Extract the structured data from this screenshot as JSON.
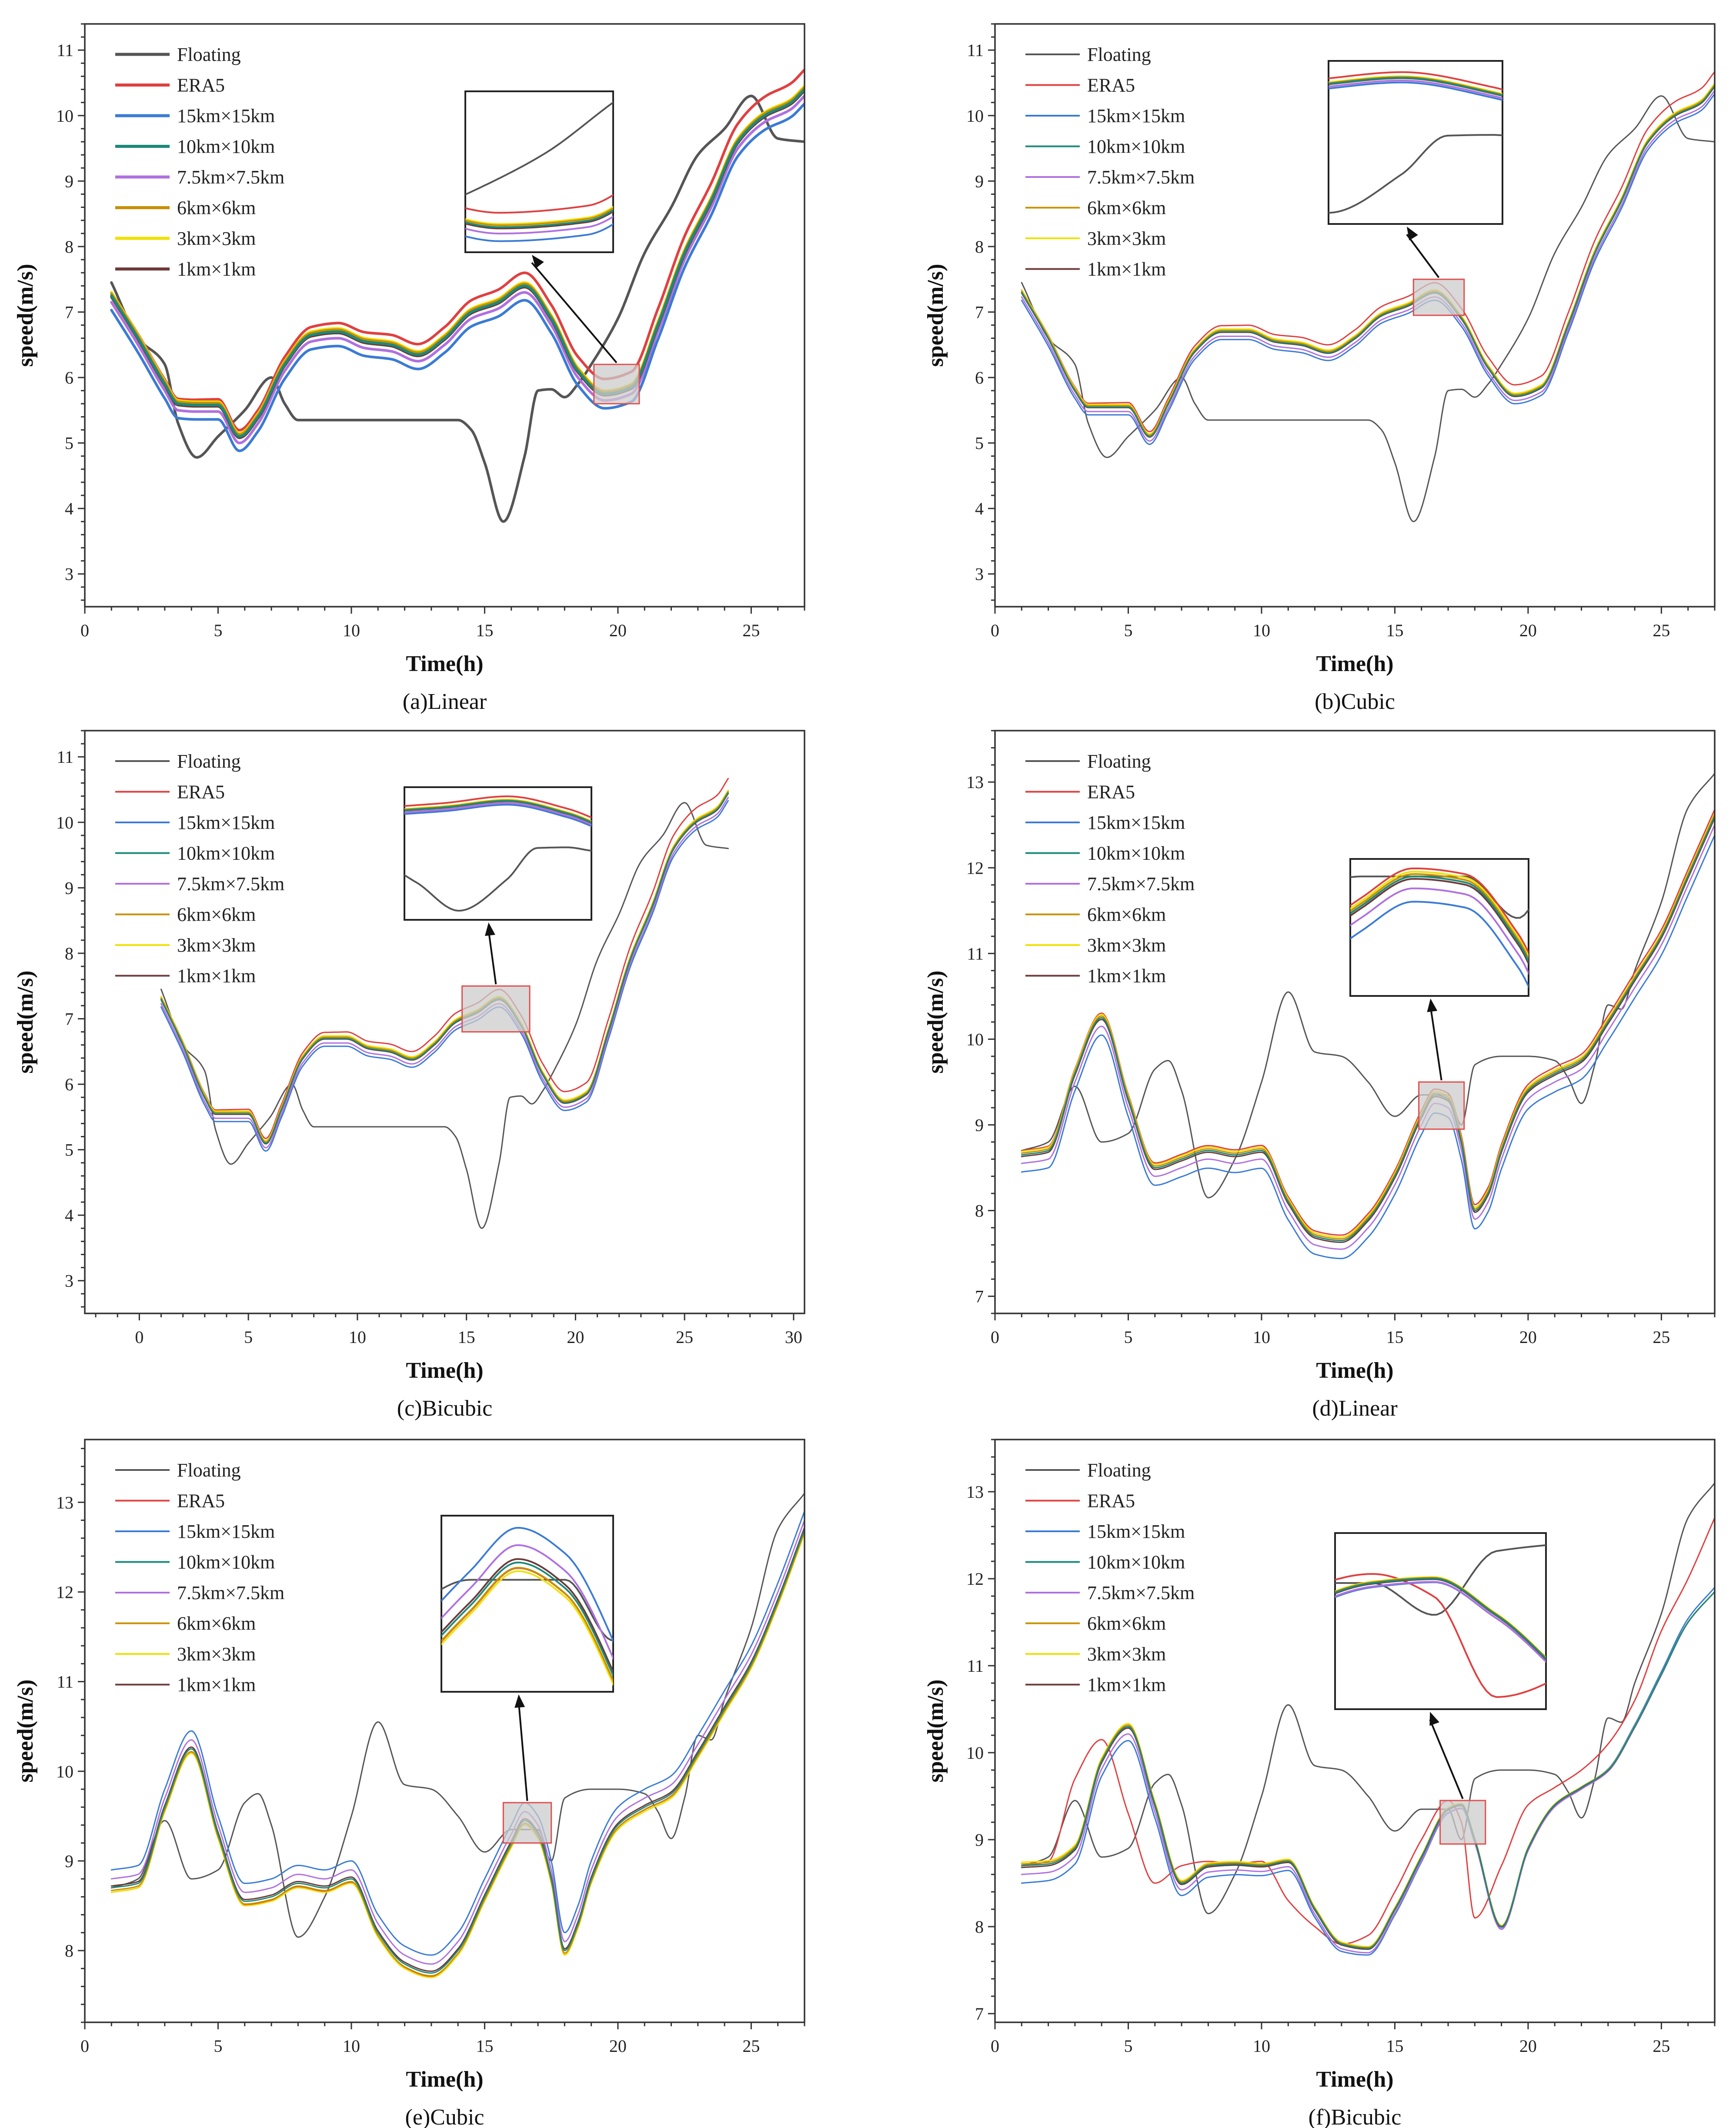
{
  "legend_labels": [
    "Floating",
    "ERA5",
    "15km×15km",
    "10km×10km",
    "7.5km×7.5km",
    "6km×6km",
    "3km×3km",
    "1km×1km"
  ],
  "colors": {
    "Floating": "#555555",
    "ERA5": "#e04040",
    "15km×15km": "#3a7bd5",
    "10km×10km": "#1a8a7a",
    "7.5km×7.5km": "#b070e0",
    "6km×6km": "#c89000",
    "3km×3km": "#f0e000",
    "1km×1km": "#6e3a3a"
  },
  "chart_data": [
    {
      "type": "line",
      "caption": "(a)Linear",
      "xlabel": "Time(h)",
      "ylabel": "speed(m/s)",
      "xlim": [
        0,
        27
      ],
      "ylim": [
        2.5,
        11.4
      ],
      "xticks": [
        0,
        5,
        10,
        15,
        20,
        25
      ],
      "yticks": [
        3,
        4,
        5,
        6,
        7,
        8,
        9,
        10,
        11
      ],
      "floating": {
        "x": [
          1,
          2,
          3,
          3.5,
          4.2,
          5,
          6,
          7,
          7.5,
          8,
          9,
          10,
          11,
          12,
          13,
          14,
          14.5,
          15,
          15.7,
          16.5,
          17,
          17.5,
          18,
          18.5,
          19,
          20,
          21,
          22,
          23,
          24,
          25,
          26,
          27
        ],
        "y": [
          7.45,
          6.6,
          6.2,
          5.3,
          4.78,
          5.1,
          5.5,
          6.0,
          5.6,
          5.35,
          5.35,
          5.35,
          5.35,
          5.35,
          5.35,
          5.35,
          5.2,
          4.7,
          3.8,
          4.8,
          5.8,
          5.82,
          5.7,
          5.9,
          6.2,
          6.9,
          7.9,
          8.6,
          9.4,
          9.8,
          10.3,
          9.65,
          9.6
        ]
      },
      "base": {
        "x": [
          1,
          2,
          3,
          3.5,
          4.2,
          5,
          5.8,
          6.5,
          7.5,
          8.5,
          9.5,
          10.5,
          11.5,
          12.5,
          13.5,
          14.5,
          15.5,
          16.5,
          17.5,
          18.5,
          19.5,
          20.5,
          21.5,
          22.5,
          23.5,
          24.5,
          25.5,
          26.5,
          27
        ],
        "y": [
          7.25,
          6.6,
          5.9,
          5.6,
          5.58,
          5.58,
          5.1,
          5.4,
          6.2,
          6.65,
          6.7,
          6.55,
          6.5,
          6.35,
          6.6,
          7.0,
          7.15,
          7.4,
          6.9,
          6.1,
          5.75,
          5.85,
          6.8,
          7.9,
          8.7,
          9.6,
          10.0,
          10.2,
          10.4
        ]
      },
      "offsets": {
        "ERA5": [
          0.05,
          0.3
        ],
        "15km×15km": [
          -0.22,
          -0.22
        ],
        "10km×10km": [
          0.0,
          0.0
        ],
        "7.5km×7.5km": [
          -0.1,
          -0.1
        ],
        "6km×6km": [
          0.03,
          0.03
        ],
        "3km×3km": [
          0.05,
          0.05
        ],
        "1km×1km": [
          -0.02,
          -0.02
        ]
      },
      "zoom_region": {
        "x": [
          19.1,
          20.8
        ],
        "y": [
          5.6,
          6.2
        ]
      },
      "line_width": 6
    },
    {
      "type": "line",
      "caption": "(b)Cubic",
      "xlabel": "Time(h)",
      "ylabel": "speed(m/s)",
      "xlim": [
        0,
        27
      ],
      "ylim": [
        2.5,
        11.4
      ],
      "xticks": [
        0,
        5,
        10,
        15,
        20,
        25
      ],
      "yticks": [
        3,
        4,
        5,
        6,
        7,
        8,
        9,
        10,
        11
      ],
      "floating": {
        "x": [
          1,
          2,
          3,
          3.5,
          4.2,
          5,
          6,
          7,
          7.5,
          8,
          9,
          10,
          11,
          12,
          13,
          14,
          14.5,
          15,
          15.7,
          16.5,
          17,
          17.5,
          18,
          18.5,
          19,
          20,
          21,
          22,
          23,
          24,
          25,
          26,
          27
        ],
        "y": [
          7.45,
          6.6,
          6.2,
          5.3,
          4.78,
          5.1,
          5.5,
          6.0,
          5.6,
          5.35,
          5.35,
          5.35,
          5.35,
          5.35,
          5.35,
          5.35,
          5.2,
          4.7,
          3.8,
          4.8,
          5.8,
          5.82,
          5.7,
          5.9,
          6.2,
          6.9,
          7.9,
          8.6,
          9.4,
          9.8,
          10.3,
          9.65,
          9.6
        ]
      },
      "base": {
        "x": [
          1,
          2,
          3,
          3.5,
          4.2,
          5,
          5.8,
          6.5,
          7.5,
          8.5,
          9.5,
          10.5,
          11.5,
          12.5,
          13.5,
          14.5,
          15.5,
          16.5,
          17.5,
          18.5,
          19.5,
          20.5,
          21.5,
          22.5,
          23.5,
          24.5,
          25.5,
          26.5,
          27
        ],
        "y": [
          7.3,
          6.6,
          5.8,
          5.55,
          5.55,
          5.55,
          5.1,
          5.6,
          6.4,
          6.7,
          6.7,
          6.55,
          6.5,
          6.38,
          6.6,
          6.95,
          7.1,
          7.3,
          6.9,
          6.15,
          5.72,
          5.85,
          6.8,
          7.9,
          8.7,
          9.6,
          10.0,
          10.2,
          10.45
        ]
      },
      "offsets": {
        "ERA5": [
          0.04,
          0.22
        ],
        "15km×15km": [
          -0.12,
          -0.12
        ],
        "10km×10km": [
          0.0,
          0.0
        ],
        "7.5km×7.5km": [
          -0.07,
          -0.07
        ],
        "6km×6km": [
          0.02,
          0.02
        ],
        "3km×3km": [
          0.04,
          0.04
        ],
        "1km×1km": [
          -0.01,
          -0.01
        ]
      },
      "zoom_region": {
        "x": [
          15.7,
          17.6
        ],
        "y": [
          6.95,
          7.5
        ]
      },
      "line_width": 3
    },
    {
      "type": "line",
      "caption": "(c)Bicubic",
      "xlabel": "Time(h)",
      "ylabel": "speed(m/s)",
      "xlim": [
        -2.5,
        30.5
      ],
      "ylim": [
        2.5,
        11.4
      ],
      "xticks": [
        0,
        5,
        10,
        15,
        20,
        25,
        30
      ],
      "yticks": [
        3,
        4,
        5,
        6,
        7,
        8,
        9,
        10,
        11
      ],
      "floating": {
        "x": [
          1,
          2,
          3,
          3.5,
          4.2,
          5,
          6,
          7,
          7.5,
          8,
          9,
          10,
          11,
          12,
          13,
          14,
          14.5,
          15,
          15.7,
          16.5,
          17,
          17.5,
          18,
          18.5,
          19,
          20,
          21,
          22,
          23,
          24,
          25,
          26,
          27
        ],
        "y": [
          7.45,
          6.6,
          6.2,
          5.3,
          4.78,
          5.1,
          5.5,
          6.0,
          5.6,
          5.35,
          5.35,
          5.35,
          5.35,
          5.35,
          5.35,
          5.35,
          5.2,
          4.7,
          3.8,
          4.8,
          5.8,
          5.82,
          5.7,
          5.9,
          6.2,
          6.9,
          7.9,
          8.6,
          9.4,
          9.8,
          10.3,
          9.65,
          9.6
        ]
      },
      "base": {
        "x": [
          1,
          2,
          3,
          3.5,
          4.2,
          5,
          5.8,
          6.5,
          7.5,
          8.5,
          9.5,
          10.5,
          11.5,
          12.5,
          13.5,
          14.5,
          15.5,
          16.5,
          17.5,
          18.5,
          19.5,
          20.5,
          21.5,
          22.5,
          23.5,
          24.5,
          25.5,
          26.5,
          27
        ],
        "y": [
          7.3,
          6.6,
          5.8,
          5.55,
          5.55,
          5.55,
          5.1,
          5.6,
          6.4,
          6.7,
          6.7,
          6.55,
          6.5,
          6.38,
          6.6,
          6.95,
          7.1,
          7.3,
          6.9,
          6.15,
          5.72,
          5.85,
          6.8,
          7.9,
          8.7,
          9.6,
          10.0,
          10.2,
          10.45
        ]
      },
      "offsets": {
        "ERA5": [
          0.04,
          0.22
        ],
        "15km×15km": [
          -0.12,
          -0.12
        ],
        "10km×10km": [
          0.0,
          0.0
        ],
        "7.5km×7.5km": [
          -0.07,
          -0.07
        ],
        "6km×6km": [
          0.02,
          0.02
        ],
        "3km×3km": [
          0.04,
          0.04
        ],
        "1km×1km": [
          -0.01,
          -0.01
        ]
      },
      "zoom_region": {
        "x": [
          14.8,
          17.9
        ],
        "y": [
          6.8,
          7.5
        ]
      },
      "line_width": 3
    },
    {
      "type": "line",
      "caption": "(d)Linear",
      "xlabel": "Time(h)",
      "ylabel": "speed(m/s)",
      "xlim": [
        0,
        27
      ],
      "ylim": [
        6.8,
        13.6
      ],
      "xticks": [
        0,
        5,
        10,
        15,
        20,
        25
      ],
      "yticks": [
        7,
        8,
        9,
        10,
        11,
        12,
        13
      ],
      "floating": {
        "x": [
          1,
          2,
          3,
          4,
          5,
          6,
          6.5,
          7,
          8,
          9,
          10,
          11,
          12,
          13,
          14,
          15,
          16,
          17,
          17.5,
          18,
          19,
          20,
          21,
          21.5,
          22,
          22.5,
          23,
          23.5,
          24,
          25,
          26,
          27
        ],
        "y": [
          8.7,
          8.8,
          9.45,
          8.8,
          8.9,
          9.65,
          9.75,
          9.4,
          8.15,
          8.6,
          9.5,
          10.55,
          9.85,
          9.8,
          9.5,
          9.1,
          9.35,
          9.35,
          9.0,
          9.7,
          9.8,
          9.8,
          9.75,
          9.55,
          9.25,
          9.7,
          10.4,
          10.35,
          10.8,
          11.6,
          12.7,
          13.1
        ]
      },
      "base": {
        "x": [
          1,
          2,
          3,
          4,
          5,
          6,
          7,
          8,
          9,
          10,
          11,
          12,
          13,
          14,
          15,
          16,
          16.5,
          17,
          17.5,
          18,
          18.5,
          19,
          20,
          21,
          22,
          23,
          24,
          25,
          26,
          27
        ],
        "y": [
          8.65,
          8.7,
          9.6,
          10.25,
          9.3,
          8.5,
          8.6,
          8.7,
          8.65,
          8.7,
          8.1,
          7.7,
          7.65,
          7.9,
          8.4,
          9.1,
          9.35,
          9.3,
          8.8,
          8.0,
          8.2,
          8.7,
          9.4,
          9.6,
          9.75,
          10.2,
          10.7,
          11.2,
          11.9,
          12.6
        ]
      },
      "offsets": {
        "ERA5": [
          0.05,
          0.08
        ],
        "15km×15km": [
          -0.2,
          -0.22
        ],
        "10km×10km": [
          0.0,
          0.0
        ],
        "7.5km×7.5km": [
          -0.1,
          -0.1
        ],
        "6km×6km": [
          0.02,
          0.02
        ],
        "3km×3km": [
          0.04,
          0.04
        ],
        "1km×1km": [
          -0.02,
          -0.02
        ]
      },
      "zoom_region": {
        "x": [
          15.9,
          17.6
        ],
        "y": [
          8.95,
          9.5
        ]
      },
      "line_width": 3
    },
    {
      "type": "line",
      "caption": "(e)Cubic",
      "xlabel": "Time(h)",
      "ylabel": "speed(m/s)",
      "xlim": [
        0,
        27
      ],
      "ylim": [
        7.2,
        13.7
      ],
      "xticks": [
        0,
        5,
        10,
        15,
        20,
        25
      ],
      "yticks": [
        8,
        9,
        10,
        11,
        12,
        13
      ],
      "floating": {
        "x": [
          1,
          2,
          3,
          4,
          5,
          6,
          6.5,
          7,
          8,
          9,
          10,
          11,
          12,
          13,
          14,
          15,
          16,
          17,
          17.5,
          18,
          19,
          20,
          21,
          21.5,
          22,
          22.5,
          23,
          23.5,
          24,
          25,
          26,
          27
        ],
        "y": [
          8.7,
          8.8,
          9.45,
          8.8,
          8.9,
          9.65,
          9.75,
          9.4,
          8.15,
          8.6,
          9.5,
          10.55,
          9.85,
          9.8,
          9.5,
          9.1,
          9.35,
          9.35,
          9.0,
          9.7,
          9.8,
          9.8,
          9.75,
          9.55,
          9.25,
          9.7,
          10.4,
          10.35,
          10.8,
          11.6,
          12.7,
          13.1
        ]
      },
      "base": {
        "x": [
          1,
          2,
          3,
          4,
          5,
          6,
          7,
          8,
          9,
          10,
          11,
          12,
          13,
          14,
          15,
          16,
          16.5,
          17,
          17.5,
          18,
          18.5,
          19,
          20,
          21,
          22,
          23,
          24,
          25,
          26,
          27
        ],
        "y": [
          8.7,
          8.75,
          9.6,
          10.25,
          9.3,
          8.55,
          8.6,
          8.75,
          8.7,
          8.8,
          8.2,
          7.85,
          7.75,
          8.0,
          8.6,
          9.2,
          9.45,
          9.3,
          8.8,
          8.0,
          8.3,
          8.8,
          9.4,
          9.6,
          9.75,
          10.2,
          10.7,
          11.2,
          11.9,
          12.7
        ]
      },
      "offsets": {
        "ERA5": [
          -0.05,
          -0.02
        ],
        "15km×15km": [
          0.2,
          0.2
        ],
        "10km×10km": [
          0.0,
          0.0
        ],
        "7.5km×7.5km": [
          0.1,
          0.1
        ],
        "6km×6km": [
          -0.03,
          -0.03
        ],
        "3km×3km": [
          -0.05,
          -0.05
        ],
        "1km×1km": [
          0.02,
          0.02
        ]
      },
      "zoom_region": {
        "x": [
          15.7,
          17.5
        ],
        "y": [
          9.2,
          9.65
        ]
      },
      "line_width": 3
    },
    {
      "type": "line",
      "caption": "(f)Bicubic",
      "xlabel": "Time(h)",
      "ylabel": "speed(m/s)",
      "xlim": [
        0,
        27
      ],
      "ylim": [
        6.9,
        13.6
      ],
      "xticks": [
        0,
        5,
        10,
        15,
        20,
        25
      ],
      "yticks": [
        7,
        8,
        9,
        10,
        11,
        12,
        13
      ],
      "floating": {
        "x": [
          1,
          2,
          3,
          4,
          5,
          6,
          6.5,
          7,
          8,
          9,
          10,
          11,
          12,
          13,
          14,
          15,
          16,
          17,
          17.5,
          18,
          19,
          20,
          21,
          21.5,
          22,
          22.5,
          23,
          23.5,
          24,
          25,
          26,
          27
        ],
        "y": [
          8.7,
          8.8,
          9.45,
          8.8,
          8.9,
          9.65,
          9.75,
          9.4,
          8.15,
          8.6,
          9.5,
          10.55,
          9.85,
          9.8,
          9.5,
          9.1,
          9.35,
          9.35,
          9.0,
          9.7,
          9.8,
          9.8,
          9.75,
          9.55,
          9.25,
          9.7,
          10.4,
          10.35,
          10.8,
          11.6,
          12.7,
          13.1
        ]
      },
      "base": {
        "x": [
          1,
          2,
          3,
          4,
          5,
          6,
          7,
          8,
          9,
          10,
          11,
          12,
          13,
          14,
          15,
          16,
          17,
          17.5,
          18,
          19,
          20,
          21,
          22,
          23,
          24,
          25,
          26,
          27
        ],
        "y": [
          8.7,
          8.72,
          8.9,
          9.9,
          10.3,
          9.4,
          8.5,
          8.7,
          8.72,
          8.7,
          8.75,
          8.2,
          7.8,
          7.75,
          8.2,
          8.8,
          9.35,
          9.4,
          9.0,
          8.0,
          8.9,
          9.4,
          9.6,
          9.8,
          10.3,
          10.9,
          11.5,
          11.85
        ]
      },
      "era5": {
        "x": [
          1,
          2,
          3,
          4,
          5,
          6,
          7,
          8,
          9,
          10,
          11,
          12,
          13,
          14,
          15,
          16,
          17,
          17.5,
          18,
          19,
          20,
          21,
          22,
          23,
          24,
          25,
          26,
          27
        ],
        "y": [
          8.7,
          8.75,
          9.7,
          10.15,
          9.3,
          8.5,
          8.7,
          8.75,
          8.72,
          8.75,
          8.3,
          8.0,
          7.8,
          7.9,
          8.4,
          9.0,
          9.45,
          9.2,
          8.1,
          8.7,
          9.4,
          9.6,
          9.8,
          10.1,
          10.6,
          11.4,
          12.0,
          12.7
        ]
      },
      "offsets": {
        "ERA5": [
          0,
          0
        ],
        "15km×15km": [
          -0.2,
          0.05
        ],
        "10km×10km": [
          0.0,
          0.0
        ],
        "7.5km×7.5km": [
          -0.1,
          0.0
        ],
        "6km×6km": [
          0.02,
          0.0
        ],
        "3km×3km": [
          0.04,
          0.0
        ],
        "1km×1km": [
          -0.02,
          0.0
        ]
      },
      "zoom_region": {
        "x": [
          16.7,
          18.4
        ],
        "y": [
          8.95,
          9.45
        ]
      },
      "line_width": 3
    }
  ]
}
